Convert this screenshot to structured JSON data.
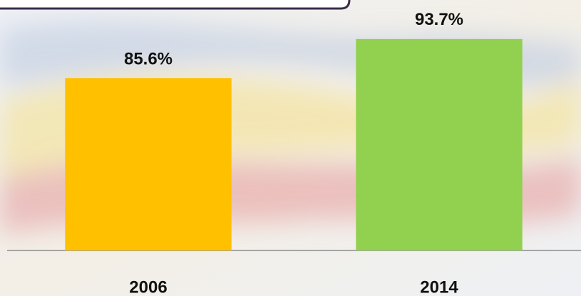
{
  "chart_data": {
    "type": "bar",
    "categories": [
      "2006",
      "2014"
    ],
    "values": [
      85.6,
      93.7
    ],
    "value_labels": [
      "85.6%",
      "93.7%"
    ],
    "colors": [
      "#ffc000",
      "#92d050"
    ],
    "ylim": [
      50,
      100
    ]
  }
}
